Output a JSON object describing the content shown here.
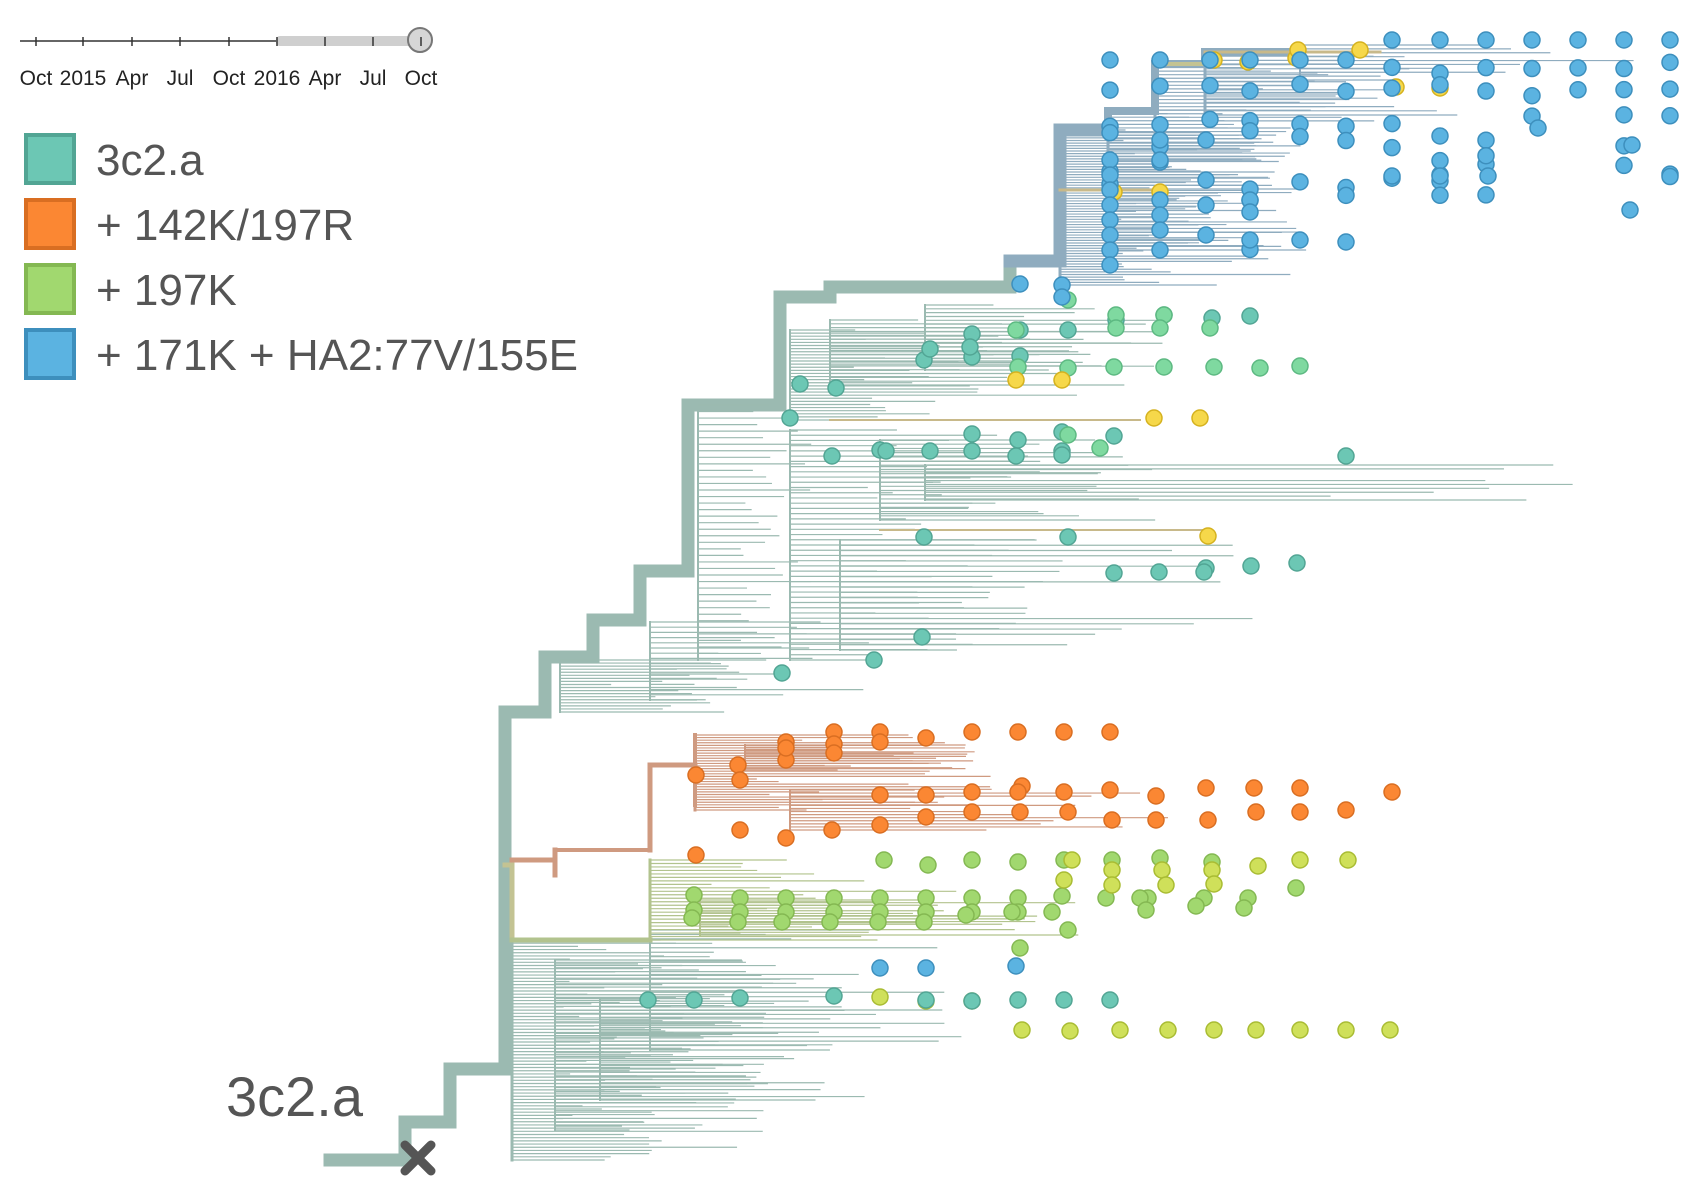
{
  "timeline": {
    "ticks": [
      "Oct",
      "2015",
      "Apr",
      "Jul",
      "Oct",
      "2016",
      "Apr",
      "Jul",
      "Oct"
    ]
  },
  "legend": [
    {
      "label": "3c2.a",
      "color": "#6cc7b4",
      "stroke": "#52a594"
    },
    {
      "label": "+ 142K/197R",
      "color": "#fb8733",
      "stroke": "#d96e22"
    },
    {
      "label": "+ 197K",
      "color": "#a1d86f",
      "stroke": "#84b852"
    },
    {
      "label": "+ 171K + HA2:77V/155E",
      "color": "#5bb3e1",
      "stroke": "#3d8fbd"
    }
  ],
  "clade_label": "3c2.a",
  "colors": {
    "trunk": "#9bbab1",
    "branch_teal": "#9bbab1",
    "branch_blue": "#8facbf",
    "branch_orange": "#cf9a80",
    "branch_olive": "#c3c393",
    "branch_green": "#b2c38e",
    "branch_tan": "#c8b98a",
    "tip_yellow": "#f6d84a",
    "tip_yellow_stroke": "#d5b21f",
    "root_marker": "#555555"
  }
}
